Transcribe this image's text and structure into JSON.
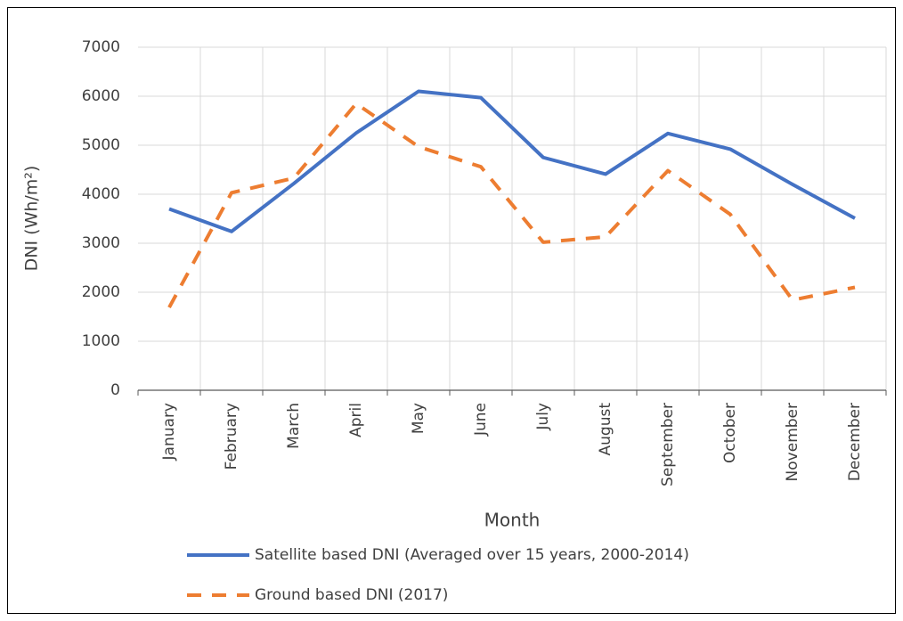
{
  "chart_data": {
    "type": "line",
    "x_label": "Month",
    "y_label": "DNI (Wh/m²)",
    "categories": [
      "January",
      "February",
      "March",
      "April",
      "May",
      "June",
      "July",
      "August",
      "September",
      "October",
      "November",
      "December"
    ],
    "series": [
      {
        "name": "Satellite based DNI (Averaged over 15 years, 2000-2014)",
        "color": "#4472c4",
        "style": "solid",
        "values": [
          3700,
          3240,
          4220,
          5250,
          6100,
          5970,
          4750,
          4410,
          5240,
          4920,
          4200,
          3510
        ]
      },
      {
        "name": "Ground based DNI (2017)",
        "color": "#ed7d31",
        "style": "dashed",
        "values": [
          1690,
          4030,
          4330,
          5850,
          4970,
          4560,
          3020,
          3130,
          4480,
          3590,
          1840,
          2100
        ]
      }
    ],
    "ylim": [
      0,
      7000
    ],
    "yticks": [
      0,
      1000,
      2000,
      3000,
      4000,
      5000,
      6000,
      7000
    ],
    "grid": true,
    "legend": "bottom"
  }
}
